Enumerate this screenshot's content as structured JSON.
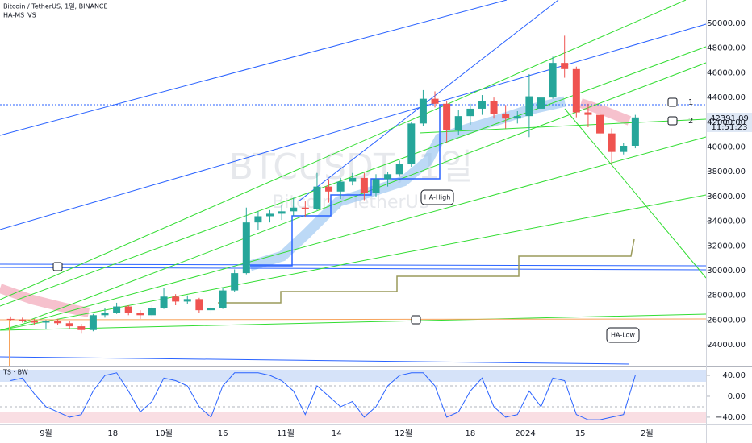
{
  "chart_data": [
    {
      "type": "candlestick",
      "title": "Bitcoin / TetherUS, 1일, BINANCE",
      "indicator": "HA-MS_VS",
      "watermark": "BTCUSDT, 1일",
      "watermark_sub": "Bitcoin / TetherUS",
      "annotations": [
        "HA-High",
        "HA-Low",
        "1",
        "2"
      ],
      "last_price": "42391.09",
      "countdown": "11:51:23",
      "up_color": "#26a69a",
      "down_color": "#ef5350",
      "xlim": [
        -11.7,
        168.0
      ],
      "ylim": [
        22250,
        51890
      ],
      "xticks": [
        {
          "value": 0,
          "label": "9월"
        },
        {
          "value": 17,
          "label": "18"
        },
        {
          "value": 30,
          "label": "10월"
        },
        {
          "value": 45,
          "label": "16"
        },
        {
          "value": 61,
          "label": "11월"
        },
        {
          "value": 74,
          "label": "14"
        },
        {
          "value": 91,
          "label": "12월"
        },
        {
          "value": 108,
          "label": "18"
        },
        {
          "value": 122,
          "label": "2024"
        },
        {
          "value": 136,
          "label": "15"
        },
        {
          "value": 153,
          "label": "2월"
        }
      ],
      "yticks": [
        {
          "value": 24000,
          "label": "24000.00"
        },
        {
          "value": 26000,
          "label": "26000.00"
        },
        {
          "value": 28000,
          "label": "28000.00"
        },
        {
          "value": 30000,
          "label": "30000.00"
        },
        {
          "value": 32000,
          "label": "32000.00"
        },
        {
          "value": 34000,
          "label": "34000.00"
        },
        {
          "value": 36000,
          "label": "36000.00"
        },
        {
          "value": 38000,
          "label": "38000.00"
        },
        {
          "value": 40000,
          "label": "40000.00"
        },
        {
          "value": 42000,
          "label": "42000.00"
        },
        {
          "value": 44000,
          "label": "44000.00"
        },
        {
          "value": 46000,
          "label": "46000.00"
        },
        {
          "value": 48000,
          "label": "48000.00"
        },
        {
          "value": 50000,
          "label": "50000.00"
        }
      ],
      "x": [
        -9,
        -6,
        -3,
        0,
        3,
        6,
        9,
        12,
        15,
        18,
        21,
        24,
        27,
        30,
        33,
        36,
        39,
        42,
        45,
        48,
        51,
        54,
        57,
        60,
        63,
        66,
        69,
        72,
        75,
        78,
        81,
        84,
        87,
        90,
        93,
        96,
        99,
        102,
        105,
        108,
        111,
        114,
        117,
        120,
        123,
        126,
        129,
        132,
        135,
        138,
        141,
        144,
        147,
        150
      ],
      "open": [
        26100,
        26050,
        25900,
        25800,
        25900,
        25750,
        25500,
        25200,
        26400,
        26600,
        27100,
        26600,
        26400,
        27000,
        27900,
        27500,
        27700,
        26800,
        27000,
        28400,
        29800,
        33900,
        34400,
        34600,
        34800,
        35100,
        35000,
        36800,
        36400,
        37200,
        37500,
        36300,
        37400,
        37800,
        38600,
        41900,
        43900,
        43500,
        41400,
        42500,
        43100,
        43700,
        42700,
        42300,
        42500,
        43100,
        44000,
        46800,
        46300,
        42800,
        42600,
        41100,
        39600,
        40100
      ],
      "high": [
        26300,
        26200,
        26100,
        26000,
        26100,
        25900,
        25700,
        26500,
        27000,
        27400,
        27200,
        26800,
        27200,
        28600,
        28100,
        28000,
        27800,
        27200,
        28600,
        30100,
        35100,
        34800,
        34900,
        35300,
        35900,
        35600,
        37900,
        37400,
        37500,
        37900,
        37900,
        37800,
        38000,
        38900,
        42000,
        44600,
        44500,
        43700,
        43000,
        43500,
        44200,
        44000,
        43400,
        42900,
        45900,
        44500,
        47300,
        49000,
        46500,
        43500,
        43000,
        41500,
        40300,
        42600
      ],
      "low": [
        25900,
        25800,
        25600,
        25300,
        25600,
        25300,
        24900,
        25100,
        26200,
        26500,
        26400,
        26100,
        26300,
        26900,
        27200,
        27300,
        26600,
        26500,
        26900,
        28300,
        29700,
        33300,
        33900,
        34100,
        34400,
        34300,
        34900,
        35500,
        35800,
        36900,
        35700,
        36000,
        36800,
        37600,
        38400,
        41700,
        43200,
        40300,
        41000,
        41800,
        42600,
        42300,
        41500,
        41900,
        40800,
        42500,
        43900,
        45600,
        42400,
        41600,
        40400,
        38600,
        39400,
        39900
      ],
      "close": [
        26050,
        25900,
        25800,
        25900,
        25750,
        25500,
        25200,
        26400,
        26600,
        27100,
        26600,
        26400,
        27000,
        27900,
        27500,
        27700,
        26800,
        27000,
        28400,
        29800,
        33900,
        34400,
        34600,
        34800,
        35100,
        35000,
        36800,
        36400,
        37200,
        37500,
        36300,
        37400,
        37800,
        38600,
        41900,
        43900,
        43500,
        41400,
        42500,
        43100,
        43700,
        42700,
        42300,
        42500,
        44100,
        44000,
        46800,
        46300,
        42800,
        42600,
        41100,
        39600,
        40100,
        42391.09
      ]
    },
    {
      "type": "line",
      "title": "TS · BW",
      "color": "#2962ff",
      "xlim": [
        -11.7,
        168.0
      ],
      "ylim": [
        -54,
        57
      ],
      "yticks": [
        {
          "value": 40,
          "label": "40.00"
        },
        {
          "value": 0,
          "label": "0.00"
        },
        {
          "value": -40,
          "label": "−40.00"
        }
      ],
      "x": [
        -9,
        -6,
        -3,
        0,
        3,
        6,
        9,
        12,
        15,
        18,
        21,
        24,
        27,
        30,
        33,
        36,
        39,
        42,
        45,
        48,
        51,
        54,
        57,
        60,
        63,
        66,
        69,
        72,
        75,
        78,
        81,
        84,
        87,
        90,
        93,
        96,
        99,
        102,
        105,
        108,
        111,
        114,
        117,
        120,
        123,
        126,
        129,
        132,
        135,
        138,
        141,
        144,
        147,
        150
      ],
      "values": [
        30,
        35,
        5,
        -20,
        -30,
        -40,
        -35,
        10,
        40,
        45,
        10,
        -30,
        -10,
        35,
        30,
        20,
        -20,
        -40,
        20,
        45,
        45,
        45,
        40,
        30,
        10,
        -35,
        20,
        0,
        -20,
        -10,
        -40,
        -20,
        20,
        40,
        45,
        45,
        20,
        -40,
        -30,
        10,
        35,
        -20,
        -40,
        -35,
        10,
        -20,
        35,
        30,
        -35,
        -45,
        -45,
        -40,
        -35,
        40
      ]
    }
  ]
}
